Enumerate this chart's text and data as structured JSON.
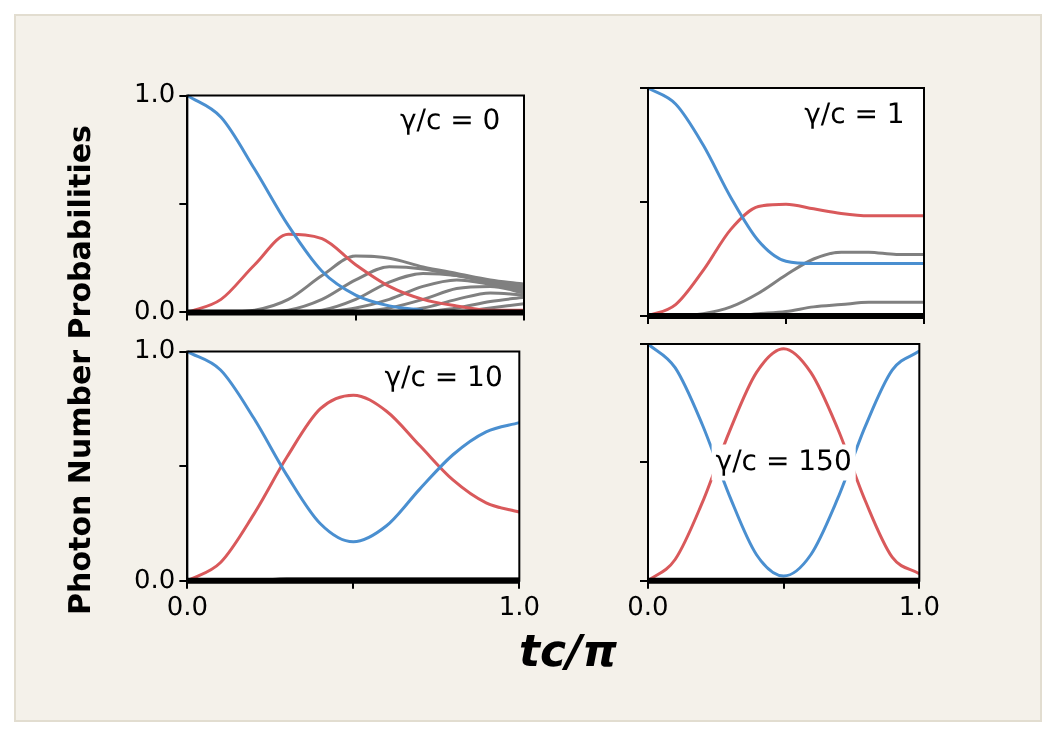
{
  "chart_data": [
    {
      "type": "line",
      "ylabel": "Photon Number Probabilities",
      "annotations": [
        "γ/c = 0"
      ],
      "x": [
        0,
        0.1,
        0.2,
        0.3,
        0.4,
        0.5,
        0.6,
        0.7,
        0.8,
        0.9,
        1
      ],
      "xlim": [
        0,
        1
      ],
      "ylim": [
        0,
        1
      ],
      "xticks": [
        {
          "value": 0,
          "label": null
        },
        {
          "value": 0.5,
          "label": null
        },
        {
          "value": 1,
          "label": null
        }
      ],
      "yticks": [
        {
          "value": 0,
          "label": "0.0"
        },
        {
          "value": 0.5,
          "label": null
        },
        {
          "value": 1,
          "label": "1.0"
        }
      ],
      "tick_labels": "y",
      "marker": "none",
      "line_style": "solid",
      "series": [
        {
          "color": "#808080",
          "values": [
            null,
            null,
            null,
            null,
            null,
            null,
            null,
            null,
            0,
            0.02,
            0.04
          ]
        },
        {
          "color": "#808080",
          "values": [
            null,
            null,
            null,
            null,
            null,
            null,
            null,
            0,
            0.02,
            0.05,
            0.07
          ]
        },
        {
          "color": "#808080",
          "values": [
            null,
            null,
            null,
            null,
            null,
            null,
            0,
            0.02,
            0.06,
            0.09,
            0.08
          ]
        },
        {
          "color": "#808080",
          "values": [
            null,
            null,
            null,
            null,
            null,
            0,
            0.02,
            0.06,
            0.11,
            0.12,
            0.09
          ]
        },
        {
          "color": "#808080",
          "values": [
            null,
            null,
            null,
            null,
            0,
            0.02,
            0.06,
            0.12,
            0.15,
            0.13,
            0.1
          ]
        },
        {
          "color": "#808080",
          "values": [
            null,
            null,
            null,
            0,
            0.01,
            0.06,
            0.14,
            0.18,
            0.17,
            0.14,
            0.11
          ]
        },
        {
          "color": "#808080",
          "values": [
            null,
            null,
            0,
            0.01,
            0.06,
            0.15,
            0.21,
            0.2,
            0.17,
            0.14,
            0.12
          ]
        },
        {
          "color": "#808080",
          "values": [
            null,
            0,
            0.01,
            0.06,
            0.17,
            0.26,
            0.25,
            0.21,
            0.18,
            0.15,
            0.13
          ]
        },
        {
          "color": "#d9595b",
          "values": [
            0,
            0.06,
            0.22,
            0.36,
            0.34,
            0.22,
            0.12,
            0.06,
            0.03,
            0.01,
            0.01
          ]
        },
        {
          "color": "#4a8fd0",
          "values": [
            1,
            0.9,
            0.66,
            0.4,
            0.19,
            0.08,
            0.03,
            0.01,
            null,
            null,
            null
          ]
        },
        {
          "color": "#000000",
          "values": [
            0,
            0,
            0,
            0,
            0,
            0,
            0,
            0,
            0,
            0,
            0
          ]
        }
      ]
    },
    {
      "type": "line",
      "annotations": [
        "γ/c = 1"
      ],
      "x": [
        0,
        0.1,
        0.2,
        0.3,
        0.4,
        0.5,
        0.6,
        0.7,
        0.8,
        0.9,
        1
      ],
      "xlim": [
        0,
        1
      ],
      "ylim": [
        0,
        1
      ],
      "xticks": [
        {
          "value": 0,
          "label": null
        },
        {
          "value": 0.5,
          "label": null
        },
        {
          "value": 1,
          "label": null
        }
      ],
      "yticks": [
        {
          "value": 0,
          "label": null
        },
        {
          "value": 0.5,
          "label": null
        },
        {
          "value": 1,
          "label": null
        }
      ],
      "tick_labels": false,
      "marker": "none",
      "line_style": "solid",
      "series": [
        {
          "color": "#808080",
          "values": [
            0,
            0,
            0,
            0,
            0.01,
            0.02,
            0.04,
            0.05,
            0.06,
            0.06,
            0.06
          ]
        },
        {
          "color": "#808080",
          "values": [
            0,
            0,
            0.01,
            0.04,
            0.1,
            0.18,
            0.25,
            0.28,
            0.28,
            0.27,
            0.27
          ]
        },
        {
          "color": "#d9595b",
          "values": [
            0,
            0.05,
            0.2,
            0.38,
            0.48,
            0.49,
            0.47,
            0.45,
            0.44,
            0.44,
            0.44
          ]
        },
        {
          "color": "#4a8fd0",
          "values": [
            1,
            0.93,
            0.75,
            0.52,
            0.33,
            0.24,
            0.23,
            0.23,
            0.23,
            0.23,
            0.23
          ]
        },
        {
          "color": "#000000",
          "values": [
            0,
            0,
            0,
            0,
            0,
            0,
            0,
            0,
            0,
            0,
            0
          ]
        }
      ]
    },
    {
      "type": "line",
      "xlabel": "tc/π",
      "annotations": [
        "γ/c = 10"
      ],
      "x": [
        0,
        0.1,
        0.2,
        0.3,
        0.4,
        0.5,
        0.6,
        0.7,
        0.8,
        0.9,
        1
      ],
      "xlim": [
        0,
        1
      ],
      "ylim": [
        0,
        1
      ],
      "xticks": [
        {
          "value": 0,
          "label": "0.0"
        },
        {
          "value": 0.5,
          "label": null
        },
        {
          "value": 1,
          "label": "1.0"
        }
      ],
      "yticks": [
        {
          "value": 0,
          "label": "0.0"
        },
        {
          "value": 0.5,
          "label": null
        },
        {
          "value": 1,
          "label": "1.0"
        }
      ],
      "marker": "none",
      "line_style": "solid",
      "series": [
        {
          "color": "#808080",
          "values": [
            0,
            0,
            0,
            0.01,
            0.01,
            0.01,
            0.01,
            0.01,
            0.01,
            0.01,
            0.01
          ]
        },
        {
          "color": "#d9595b",
          "values": [
            0,
            0.08,
            0.29,
            0.54,
            0.75,
            0.81,
            0.74,
            0.59,
            0.44,
            0.34,
            0.3
          ]
        },
        {
          "color": "#4a8fd0",
          "values": [
            1,
            0.92,
            0.71,
            0.46,
            0.25,
            0.17,
            0.24,
            0.4,
            0.55,
            0.65,
            0.69
          ]
        },
        {
          "color": "#000000",
          "values": [
            0,
            0,
            0,
            0,
            0,
            0,
            0,
            0,
            0,
            0,
            0
          ]
        }
      ]
    },
    {
      "type": "line",
      "annotations": [
        "γ/c = 150"
      ],
      "x": [
        0,
        0.1,
        0.2,
        0.3,
        0.4,
        0.5,
        0.6,
        0.7,
        0.8,
        0.9,
        1
      ],
      "xlim": [
        0,
        1
      ],
      "ylim": [
        0,
        1
      ],
      "xticks": [
        {
          "value": 0,
          "label": "0.0"
        },
        {
          "value": 0.5,
          "label": null
        },
        {
          "value": 1,
          "label": "1.0"
        }
      ],
      "yticks": [
        {
          "value": 0,
          "label": null
        },
        {
          "value": 0.5,
          "label": null
        },
        {
          "value": 1,
          "label": null
        }
      ],
      "tick_labels": "x",
      "marker": "none",
      "line_style": "solid",
      "series": [
        {
          "color": "#d9595b",
          "values": [
            0,
            0.09,
            0.33,
            0.63,
            0.88,
            0.98,
            0.88,
            0.64,
            0.34,
            0.1,
            0.03
          ]
        },
        {
          "color": "#4a8fd0",
          "values": [
            1,
            0.9,
            0.66,
            0.36,
            0.11,
            0.02,
            0.11,
            0.35,
            0.65,
            0.89,
            0.97
          ]
        },
        {
          "color": "#000000",
          "values": [
            0,
            0,
            0,
            0,
            0,
            0,
            0,
            0,
            0,
            0,
            0
          ]
        }
      ]
    }
  ]
}
